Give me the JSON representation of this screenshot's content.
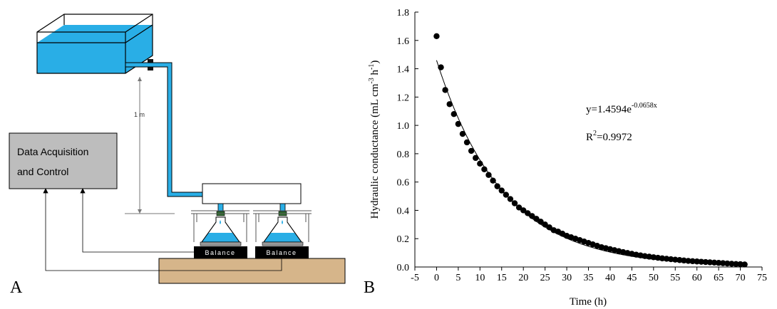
{
  "panel_a": {
    "label": "A",
    "daq_line1": "Data Acquisition",
    "daq_line2": "and Control",
    "height_label": "1 m",
    "balance1": "Balance",
    "balance2": "Balance",
    "water_color": "#29aee6",
    "table_color": "#d6b58a"
  },
  "panel_b": {
    "label": "B"
  },
  "chart_data": {
    "type": "scatter",
    "xlabel": "Time (h)",
    "ylabel_main": "Hydraulic conductance (mL cm",
    "ylabel_sup1": "-3",
    "ylabel_mid": " h",
    "ylabel_sup2": "-1",
    "ylabel_end": ")",
    "xlim": [
      -5,
      75
    ],
    "ylim": [
      0,
      1.8
    ],
    "xticks": [
      -5,
      0,
      5,
      10,
      15,
      20,
      25,
      30,
      35,
      40,
      45,
      50,
      55,
      60,
      65,
      70,
      75
    ],
    "yticks": [
      0.0,
      0.2,
      0.4,
      0.6,
      0.8,
      1.0,
      1.2,
      1.4,
      1.6,
      1.8
    ],
    "grid": false,
    "equation_base": "y=1.4594e",
    "equation_exp": "-0.0658x",
    "r2_base": "R",
    "r2_sup": "2",
    "r2_value": "=0.9972",
    "fit": {
      "a": 1.4594,
      "b": -0.0658,
      "x_range": [
        0,
        71
      ]
    },
    "series": [
      {
        "x": [
          0,
          1,
          2,
          3,
          4,
          5,
          6,
          7,
          8,
          9,
          10,
          11,
          12,
          13,
          14,
          15,
          16,
          17,
          18,
          19,
          20,
          21,
          22,
          23,
          24,
          25,
          26,
          27,
          28,
          29,
          30,
          31,
          32,
          33,
          34,
          35,
          36,
          37,
          38,
          39,
          40,
          41,
          42,
          43,
          44,
          45,
          46,
          47,
          48,
          49,
          50,
          51,
          52,
          53,
          54,
          55,
          56,
          57,
          58,
          59,
          60,
          61,
          62,
          63,
          64,
          65,
          66,
          67,
          68,
          69,
          70,
          71
        ],
        "y": [
          1.63,
          1.41,
          1.25,
          1.15,
          1.08,
          1.01,
          0.94,
          0.88,
          0.82,
          0.77,
          0.73,
          0.69,
          0.65,
          0.61,
          0.57,
          0.54,
          0.51,
          0.48,
          0.45,
          0.42,
          0.4,
          0.38,
          0.36,
          0.34,
          0.32,
          0.3,
          0.28,
          0.26,
          0.25,
          0.235,
          0.22,
          0.21,
          0.2,
          0.19,
          0.18,
          0.17,
          0.16,
          0.15,
          0.14,
          0.133,
          0.126,
          0.119,
          0.112,
          0.105,
          0.099,
          0.093,
          0.087,
          0.082,
          0.077,
          0.073,
          0.069,
          0.065,
          0.061,
          0.058,
          0.055,
          0.052,
          0.049,
          0.046,
          0.043,
          0.041,
          0.039,
          0.037,
          0.035,
          0.033,
          0.031,
          0.029,
          0.027,
          0.025,
          0.023,
          0.021,
          0.02,
          0.018
        ]
      }
    ]
  }
}
